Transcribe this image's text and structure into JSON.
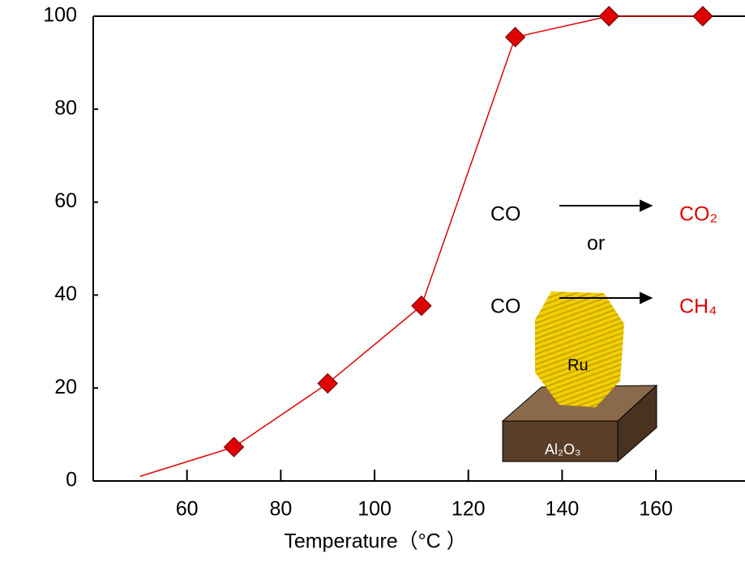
{
  "chart_data": {
    "type": "line",
    "x_label": "Temperature（°C ）",
    "x": [
      50,
      70,
      90,
      110,
      130,
      150,
      170
    ],
    "series": [
      {
        "color": "#e00000",
        "values": [
          1,
          7.3,
          21,
          37.7,
          95.5,
          100,
          100
        ],
        "markers": [
          false,
          true,
          true,
          true,
          true,
          true,
          true
        ]
      }
    ],
    "xlim": [
      40,
      179
    ],
    "xticks": [
      60,
      80,
      100,
      120,
      140,
      160
    ],
    "ylim": [
      0,
      100
    ],
    "yticks": [
      0,
      20,
      40,
      60,
      80,
      100
    ],
    "annotations": {
      "reactant_1": "CO",
      "product_1": "CO₂",
      "or": "or",
      "reactant_2": "CO",
      "product_2": "CH₄",
      "particle": "Ru",
      "support": "Al₂O₃"
    }
  }
}
